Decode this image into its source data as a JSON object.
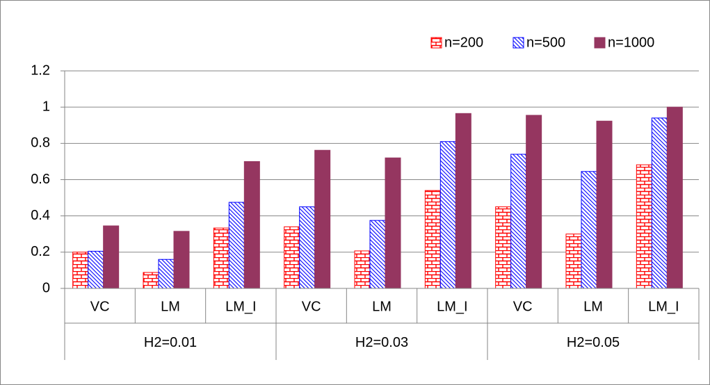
{
  "chart_data": {
    "type": "bar",
    "categories": [
      "VC",
      "LM",
      "LM_I",
      "VC",
      "LM",
      "LM_I",
      "VC",
      "LM",
      "LM_I"
    ],
    "groups": [
      "H2=0.01",
      "H2=0.03",
      "H2=0.05"
    ],
    "series": [
      {
        "name": "n=200",
        "color": "#ff0000",
        "pattern": "brick",
        "values": [
          0.2,
          0.088,
          0.333,
          0.34,
          0.207,
          0.54,
          0.45,
          0.3,
          0.682
        ]
      },
      {
        "name": "n=500",
        "color": "#0000ff",
        "pattern": "hatch",
        "values": [
          0.205,
          0.16,
          0.475,
          0.45,
          0.375,
          0.81,
          0.74,
          0.645,
          0.94
        ]
      },
      {
        "name": "n=1000",
        "color": "#953660",
        "pattern": "solid",
        "values": [
          0.345,
          0.315,
          0.7,
          0.762,
          0.72,
          0.965,
          0.955,
          0.923,
          1.0
        ]
      }
    ],
    "ylim": [
      0,
      1.2
    ],
    "yticks": [
      0,
      0.2,
      0.4,
      0.6,
      0.8,
      1,
      1.2
    ],
    "grid": true,
    "legend": "top-right"
  }
}
